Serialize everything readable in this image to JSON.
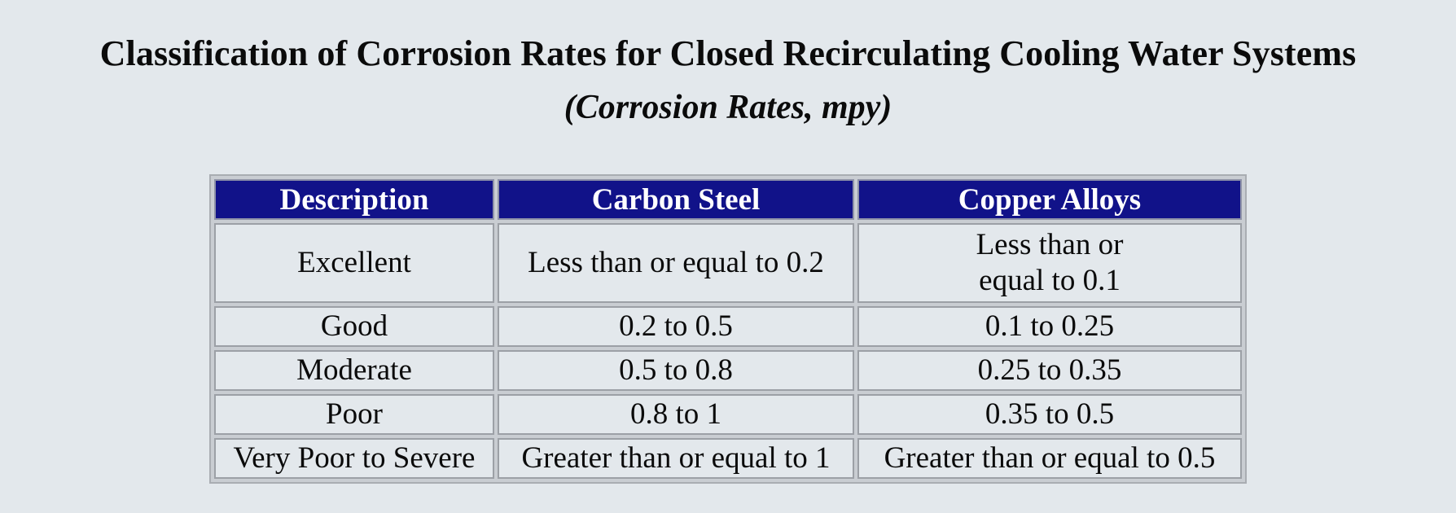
{
  "title": "Classification of Corrosion Rates for Closed Recirculating Cooling Water Systems",
  "subtitle": "(Corrosion Rates, mpy)",
  "table": {
    "headers": [
      "Description",
      "Carbon Steel",
      "Copper Alloys"
    ],
    "rows": [
      [
        "Excellent",
        "Less than or equal to 0.2",
        "Less than or\nequal to 0.1"
      ],
      [
        "Good",
        "0.2 to 0.5",
        "0.1 to 0.25"
      ],
      [
        "Moderate",
        "0.5 to 0.8",
        "0.25 to 0.35"
      ],
      [
        "Poor",
        "0.8 to 1",
        "0.35 to 0.5"
      ],
      [
        "Very Poor to Severe",
        "Greater than or equal to 1",
        "Greater than or equal to 0.5"
      ]
    ]
  },
  "colors": {
    "header_background": "#111289",
    "header_text": "#ffffff",
    "page_background": "#e3e8ec"
  }
}
